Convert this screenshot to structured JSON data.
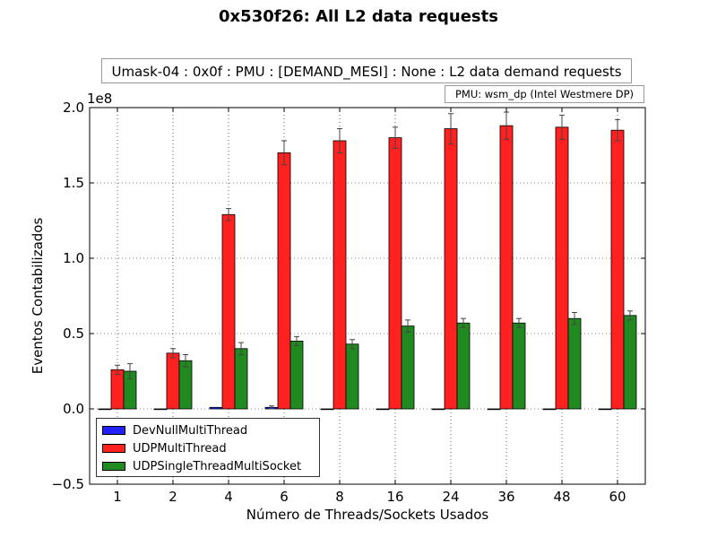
{
  "chart_data": {
    "type": "bar",
    "title": "0x530f26: All L2 data requests",
    "subtitle": "Umask-04 : 0x0f : PMU : [DEMAND_MESI] : None : L2 data demand requests",
    "pmu_label": "PMU: wsm_dp (Intel Westmere DP)",
    "xlabel": "Número de Threads/Sockets Usados",
    "ylabel": "Eventos Contabilizados",
    "y_exponent_label": "1e8",
    "ylim": [
      -0.5,
      2.0
    ],
    "y_ticks": [
      -0.5,
      0.0,
      0.5,
      1.0,
      1.5,
      2.0
    ],
    "y_tick_labels": [
      "−0.5",
      "0.0",
      "0.5",
      "1.0",
      "1.5",
      "2.0"
    ],
    "grid": true,
    "legend_position": "lower-left",
    "categories": [
      "1",
      "2",
      "4",
      "6",
      "8",
      "16",
      "24",
      "36",
      "48",
      "60"
    ],
    "series": [
      {
        "name": "DevNullMultiThread",
        "color": "#1f1fff",
        "values": [
          0,
          0,
          0.01,
          0.01,
          0,
          0,
          0,
          0,
          0,
          0
        ],
        "errors": [
          0,
          0,
          0,
          0.01,
          0,
          0,
          0,
          0,
          0,
          0
        ]
      },
      {
        "name": "UDPMultiThread",
        "color": "#ff2020",
        "values": [
          0.26,
          0.37,
          1.29,
          1.7,
          1.78,
          1.8,
          1.86,
          1.88,
          1.87,
          1.85
        ],
        "errors": [
          0.03,
          0.03,
          0.04,
          0.08,
          0.08,
          0.07,
          0.1,
          0.09,
          0.08,
          0.07
        ]
      },
      {
        "name": "UDPSingleThreadMultiSocket",
        "color": "#208a20",
        "values": [
          0.25,
          0.32,
          0.4,
          0.45,
          0.43,
          0.55,
          0.57,
          0.57,
          0.6,
          0.62
        ],
        "errors": [
          0.05,
          0.04,
          0.04,
          0.03,
          0.03,
          0.04,
          0.03,
          0.03,
          0.04,
          0.03
        ]
      }
    ]
  }
}
